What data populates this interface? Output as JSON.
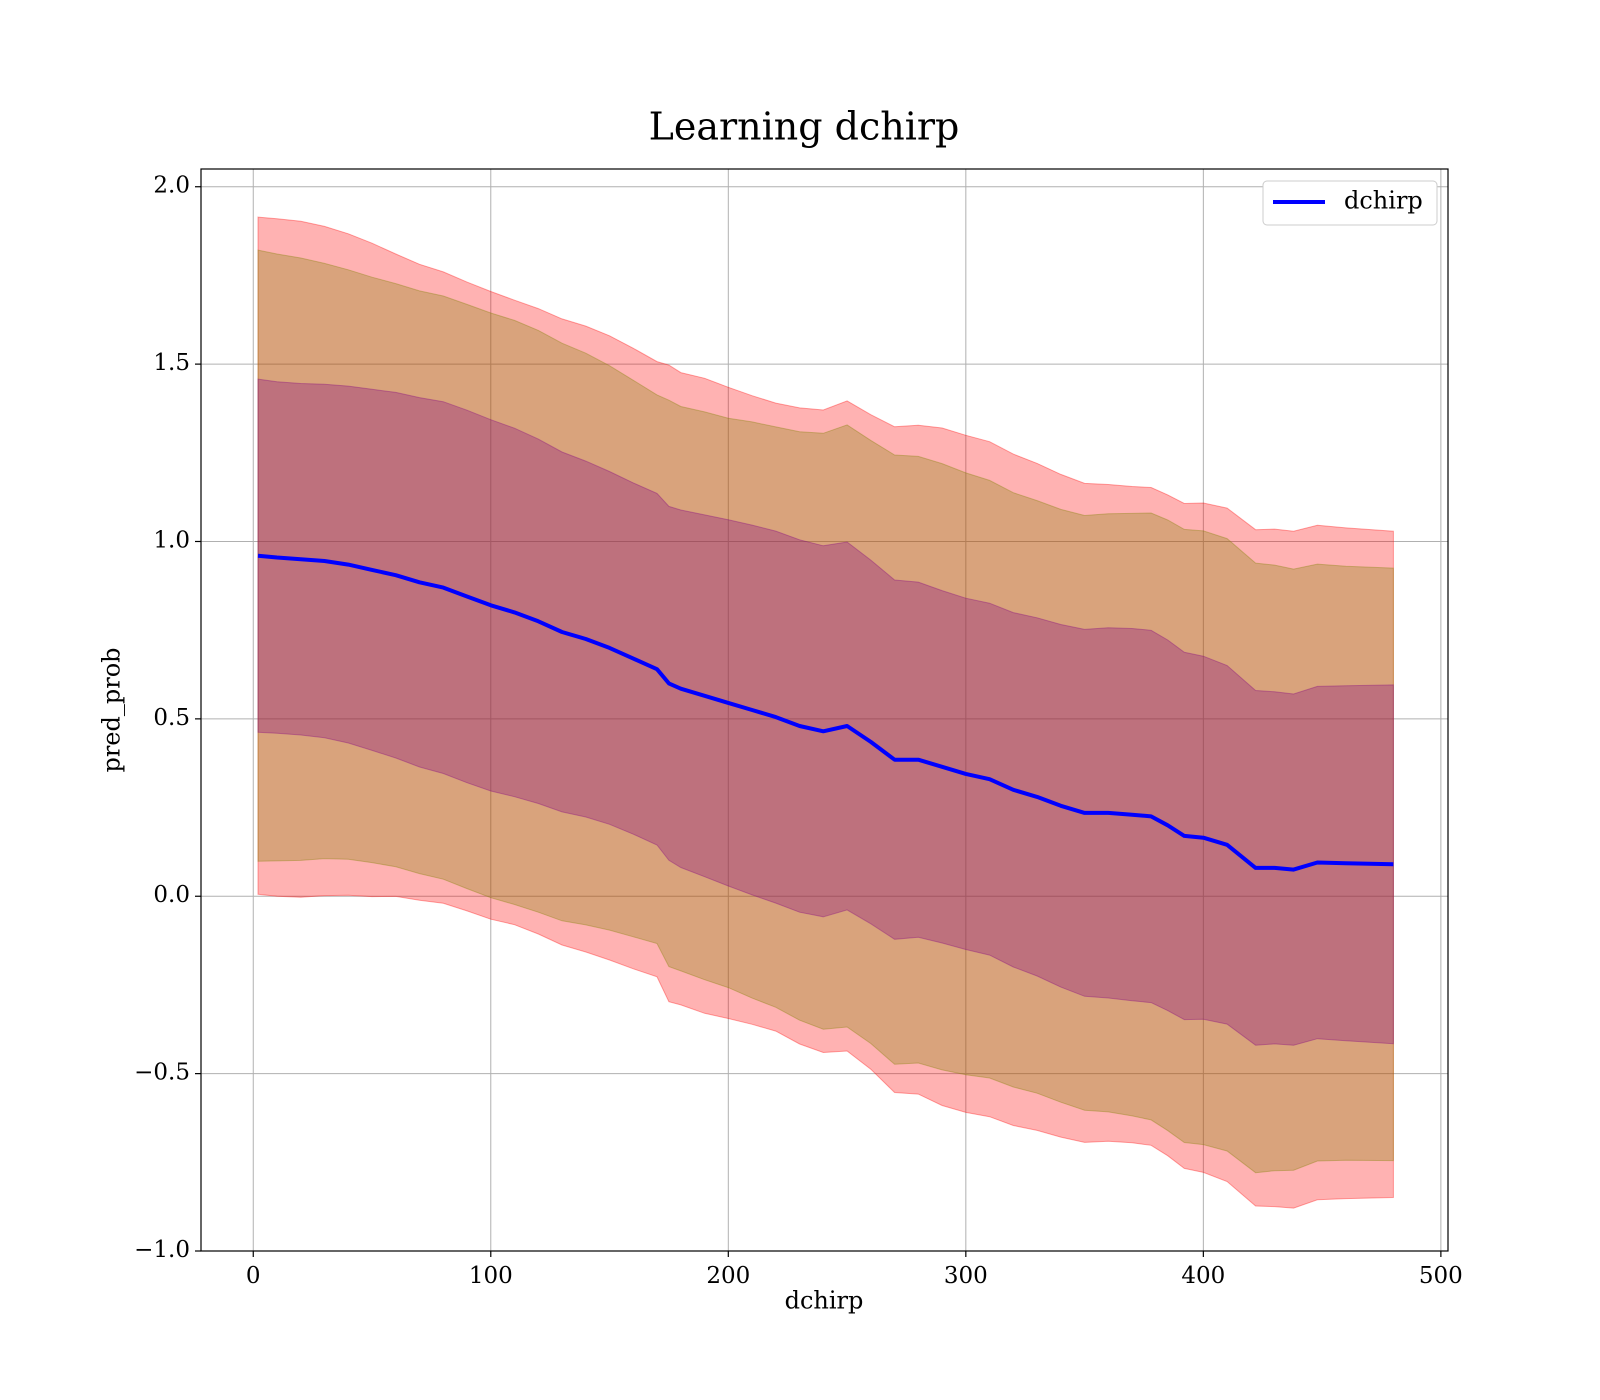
{
  "chart_data": {
    "type": "line",
    "title": "Learning dchirp",
    "xlabel": "dchirp",
    "ylabel": "pred_prob",
    "xlim": [
      -22,
      503
    ],
    "ylim": [
      -1.0,
      2.05
    ],
    "x_ticks": [
      0,
      100,
      200,
      300,
      400,
      500
    ],
    "y_ticks": [
      -1.0,
      -0.5,
      0.0,
      0.5,
      1.0,
      1.5,
      2.0
    ],
    "grid": true,
    "legend": "top-right",
    "colors": {
      "line": "#0000ff",
      "outer_band": "#ff0000",
      "middle_band": "#808000",
      "inner_band": "#800080"
    },
    "series": [
      {
        "name": "dchirp",
        "x": [
          2,
          10,
          20,
          30,
          40,
          50,
          60,
          70,
          80,
          90,
          100,
          110,
          120,
          130,
          140,
          150,
          160,
          170,
          175,
          180,
          190,
          200,
          210,
          220,
          230,
          240,
          250,
          260,
          270,
          280,
          290,
          300,
          310,
          320,
          330,
          340,
          350,
          360,
          370,
          378,
          385,
          392,
          400,
          410,
          422,
          430,
          438,
          448,
          460,
          480
        ],
        "y": [
          0.96,
          0.955,
          0.95,
          0.945,
          0.935,
          0.92,
          0.905,
          0.885,
          0.87,
          0.845,
          0.82,
          0.8,
          0.775,
          0.745,
          0.725,
          0.7,
          0.67,
          0.64,
          0.6,
          0.585,
          0.565,
          0.545,
          0.525,
          0.505,
          0.48,
          0.465,
          0.48,
          0.435,
          0.385,
          0.385,
          0.365,
          0.345,
          0.33,
          0.3,
          0.28,
          0.255,
          0.235,
          0.235,
          0.23,
          0.225,
          0.2,
          0.17,
          0.165,
          0.145,
          0.08,
          0.08,
          0.075,
          0.095,
          0.093,
          0.09
        ]
      }
    ],
    "bands": {
      "outer_half_width": [
        0.94,
        0.94,
        0.94,
        0.935,
        0.93,
        0.925,
        0.915,
        0.91,
        0.905,
        0.9,
        0.895,
        0.885,
        0.88,
        0.875,
        0.87,
        0.865,
        0.86,
        0.855,
        0.89,
        0.89,
        0.9,
        0.9,
        0.9,
        0.9,
        0.91,
        0.915,
        0.92,
        0.92,
        0.93,
        0.93,
        0.94,
        0.94,
        0.94,
        0.94,
        0.94,
        0.94,
        0.94,
        0.94,
        0.94,
        0.94,
        0.94,
        0.94,
        0.94,
        0.94,
        0.94,
        0.94,
        0.94,
        0.94,
        0.94,
        0.94
      ],
      "middle_half_width": [
        0.855,
        0.855,
        0.855,
        0.85,
        0.845,
        0.84,
        0.835,
        0.83,
        0.825,
        0.82,
        0.815,
        0.81,
        0.805,
        0.8,
        0.795,
        0.79,
        0.785,
        0.78,
        0.81,
        0.81,
        0.815,
        0.815,
        0.82,
        0.82,
        0.825,
        0.83,
        0.835,
        0.835,
        0.845,
        0.845,
        0.85,
        0.85,
        0.85,
        0.85,
        0.85,
        0.85,
        0.85,
        0.85,
        0.85,
        0.85,
        0.85,
        0.85,
        0.85,
        0.85,
        0.85,
        0.85,
        0.85,
        0.85,
        0.85,
        0.85
      ],
      "inner_half_width": [
        0.51,
        0.51,
        0.51,
        0.51,
        0.51,
        0.51,
        0.51,
        0.51,
        0.51,
        0.51,
        0.51,
        0.51,
        0.51,
        0.51,
        0.51,
        0.51,
        0.51,
        0.51,
        0.51,
        0.51,
        0.51,
        0.51,
        0.51,
        0.51,
        0.51,
        0.51,
        0.51,
        0.51,
        0.51,
        0.51,
        0.51,
        0.51,
        0.51,
        0.51,
        0.51,
        0.51,
        0.51,
        0.51,
        0.51,
        0.51,
        0.51,
        0.51,
        0.51,
        0.51,
        0.51,
        0.51,
        0.51,
        0.51,
        0.51,
        0.51
      ]
    }
  }
}
